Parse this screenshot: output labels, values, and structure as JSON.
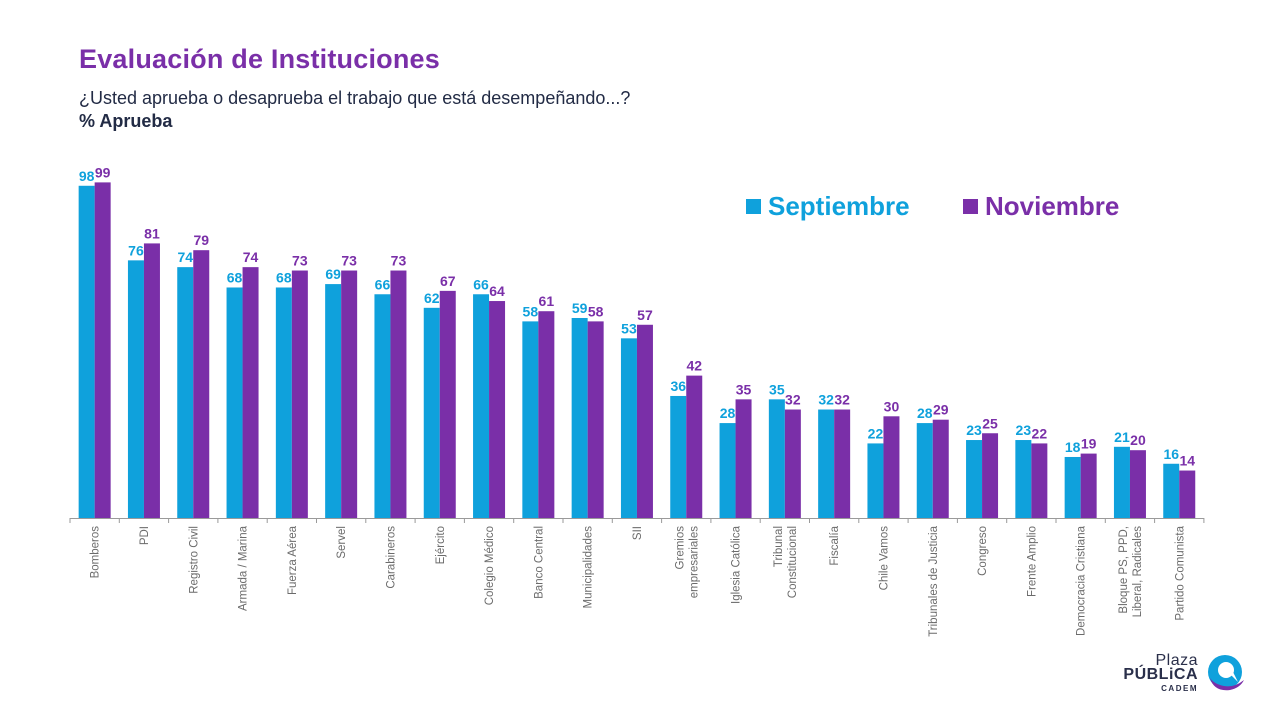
{
  "header": {
    "title": "Evaluación de Instituciones",
    "subtitle": "¿Usted aprueba o desaprueba el trabajo que está desempeñando...?",
    "metric": "% Aprueba"
  },
  "colors": {
    "septiembre": "#0fa1dc",
    "noviembre": "#7a2fa8",
    "axis": "#9a9a9a",
    "tick_label": "#6b6b6b"
  },
  "chart_data": {
    "type": "bar",
    "title": "Evaluación de Instituciones",
    "ylabel": "% Aprueba",
    "ylim": [
      0,
      100
    ],
    "legend_position": "top-right",
    "categories": [
      "Bomberos",
      "PDI",
      "Registro Civil",
      "Armada / Marina",
      "Fuerza Aérea",
      "Servel",
      "Carabineros",
      "Ejército",
      "Colegio Médico",
      "Banco Central",
      "Municipalidades",
      "SII",
      "Gremios\nempresariales",
      "Iglesia Católica",
      "Tribunal\nConstitucional",
      "Fiscalía",
      "Chile Vamos",
      "Tribunales de Justicia",
      "Congreso",
      "Frente Amplio",
      "Democracia Cristiana",
      "Bloque PS, PPD,\nLiberal, Radicales",
      "Partido Comunista"
    ],
    "series": [
      {
        "name": "Septiembre",
        "values": [
          98,
          76,
          74,
          68,
          68,
          69,
          66,
          62,
          66,
          58,
          59,
          53,
          36,
          28,
          35,
          32,
          22,
          28,
          23,
          23,
          18,
          21,
          16
        ]
      },
      {
        "name": "Noviembre",
        "values": [
          99,
          81,
          79,
          74,
          73,
          73,
          73,
          67,
          64,
          61,
          58,
          57,
          42,
          35,
          32,
          32,
          30,
          29,
          25,
          22,
          19,
          20,
          14
        ]
      }
    ]
  },
  "logo": {
    "line1": "Plaza",
    "line2": "PÚBLiCA",
    "line3": "CADEM"
  }
}
